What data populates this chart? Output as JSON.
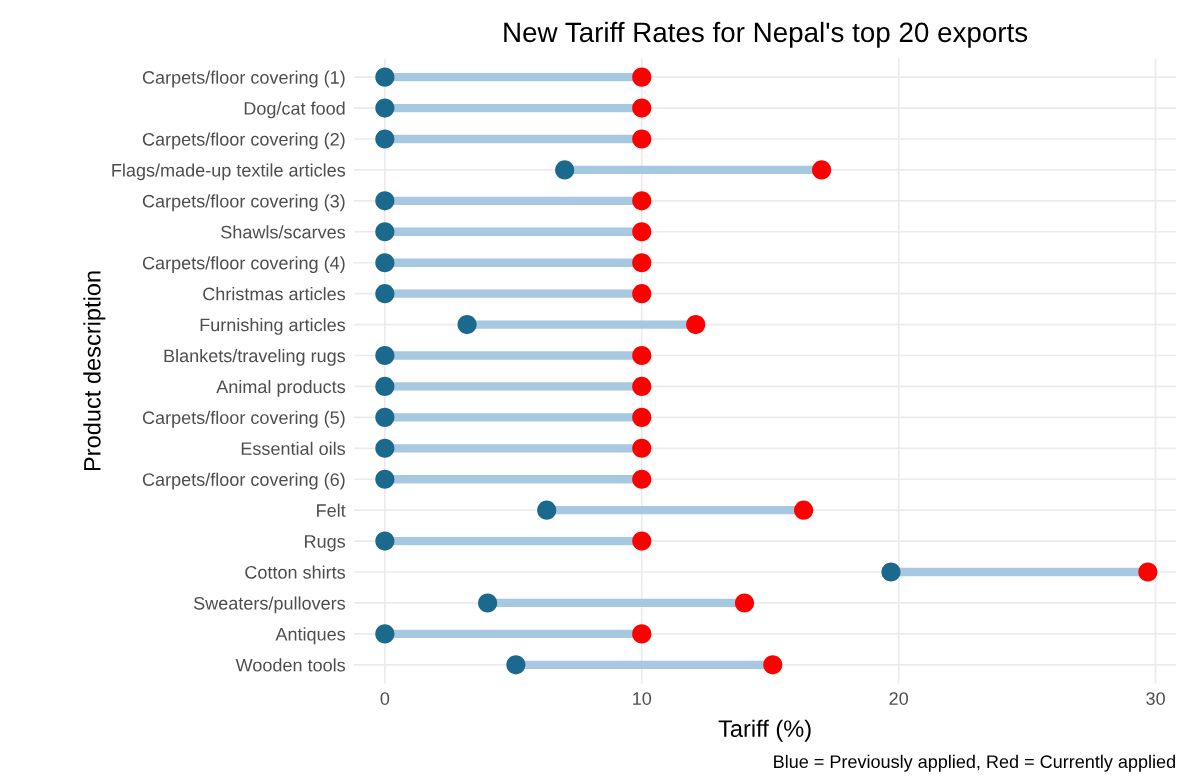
{
  "chart_data": {
    "type": "scatter",
    "orientation": "horizontal",
    "title": "New Tariff Rates for Nepal's top 20 exports",
    "xlabel": "Tariff (%)",
    "ylabel": "Product description",
    "categories": [
      "Carpets/floor covering (1)",
      "Dog/cat food",
      "Carpets/floor covering (2)",
      "Flags/made-up textile articles",
      "Carpets/floor covering (3)",
      "Shawls/scarves",
      "Carpets/floor covering (4)",
      "Christmas articles",
      "Furnishing articles",
      "Blankets/traveling rugs",
      "Animal products",
      "Carpets/floor covering (5)",
      "Essential oils",
      "Carpets/floor covering (6)",
      "Felt",
      "Rugs",
      "Cotton shirts",
      "Sweaters/pullovers",
      "Antiques",
      "Wooden tools"
    ],
    "series": [
      {
        "color": "#1b6a8e",
        "values": [
          0,
          0,
          0,
          7.0,
          0,
          0,
          0,
          0,
          3.2,
          0,
          0,
          0,
          0,
          0,
          6.3,
          0,
          19.7,
          4.0,
          0,
          5.1
        ]
      },
      {
        "color": "#ff0000",
        "values": [
          10,
          10,
          10,
          17.0,
          10,
          10,
          10,
          10,
          12.1,
          10,
          10,
          10,
          10,
          10,
          16.3,
          10,
          29.7,
          14.0,
          10,
          15.1
        ]
      }
    ],
    "xlim": [
      -1.2,
      30.8
    ],
    "xticks": [
      0,
      10,
      20,
      30
    ],
    "grid": true,
    "marker": "circle",
    "annotations": [
      "Blue = Previously applied, Red = Currently applied"
    ]
  }
}
